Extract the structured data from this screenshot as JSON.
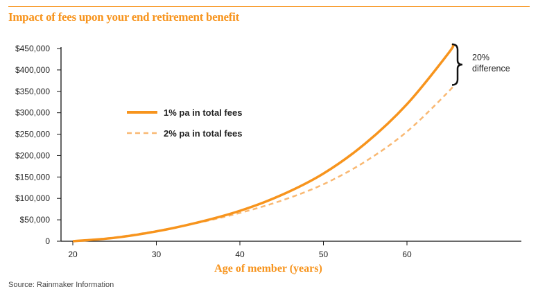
{
  "title": "Impact of fees upon your end retirement benefit",
  "source": "Source: Rainmaker Information",
  "chart_data": {
    "type": "line",
    "title": "Impact of fees upon your end retirement benefit",
    "xlabel": "Age of member (years)",
    "ylabel": "",
    "xlim": [
      20,
      73
    ],
    "ylim": [
      0,
      450000
    ],
    "xticks": [
      "20",
      "30",
      "40",
      "50",
      "60"
    ],
    "yticks": [
      "0",
      "$50,000",
      "$100,000",
      "$150,000",
      "$200,000",
      "$250,000",
      "$300,000",
      "$350,000",
      "$400,000",
      "$450,000"
    ],
    "grid": false,
    "legend_position": "upper-left",
    "x": [
      20,
      25,
      30,
      35,
      40,
      45,
      50,
      55,
      60,
      65,
      65.5
    ],
    "series": [
      {
        "name": "1% pa in total fees",
        "style": "solid",
        "color": "#f7941d",
        "values": [
          0,
          8000,
          23000,
          44000,
          71000,
          108000,
          158000,
          228000,
          320000,
          440000,
          460000
        ]
      },
      {
        "name": "2% pa in total fees",
        "style": "dashed",
        "color": "#f9b872",
        "values": [
          0,
          9000,
          24000,
          43000,
          66000,
          95000,
          133000,
          186000,
          256000,
          350000,
          365000
        ]
      }
    ],
    "annotation": {
      "line1": "20%",
      "line2": "difference"
    }
  },
  "colors": {
    "accent": "#f7941d",
    "dashed": "#f9b872",
    "axis": "#111111"
  }
}
